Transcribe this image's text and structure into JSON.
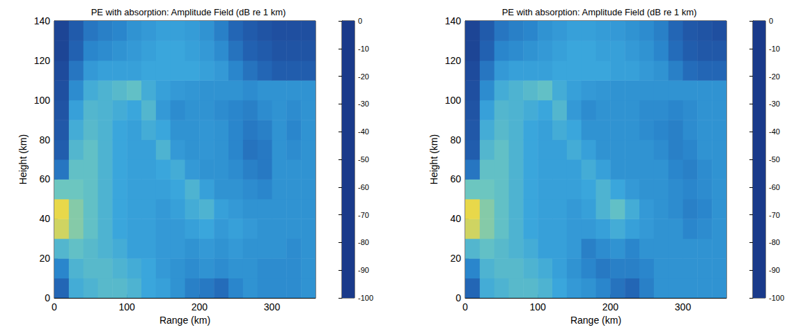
{
  "chart_data": [
    {
      "type": "heatmap",
      "title": "PE with absorption: Amplitude Field (dB re 1 km)",
      "x_label": "Range (km)",
      "y_label": "Height (km)",
      "xlim": [
        0,
        360
      ],
      "xticks": [
        0,
        100,
        200,
        300
      ],
      "ylim": [
        0,
        140
      ],
      "yticks": [
        0,
        20,
        40,
        60,
        80,
        100,
        120,
        140
      ],
      "x_bins": [
        0,
        20,
        40,
        60,
        80,
        100,
        120,
        140,
        160,
        180,
        200,
        220,
        240,
        260,
        280,
        300,
        320,
        340,
        360
      ],
      "y_bins": [
        0,
        10,
        20,
        30,
        40,
        50,
        60,
        70,
        80,
        90,
        100,
        110,
        120,
        130,
        140
      ],
      "values": [
        [
          -80,
          -58,
          -56,
          -54,
          -54,
          -56,
          -60,
          -62,
          -66,
          -72,
          -74,
          -78,
          -70,
          -66,
          -68,
          -68,
          -68,
          -66
        ],
        [
          -70,
          -56,
          -54,
          -54,
          -56,
          -58,
          -60,
          -64,
          -66,
          -68,
          -66,
          -68,
          -66,
          -66,
          -68,
          -68,
          -68,
          -66
        ],
        [
          -55,
          -52,
          -54,
          -56,
          -58,
          -62,
          -62,
          -64,
          -64,
          -66,
          -64,
          -66,
          -64,
          -66,
          -66,
          -66,
          -68,
          -66
        ],
        [
          -42,
          -48,
          -52,
          -56,
          -60,
          -62,
          -62,
          -64,
          -64,
          -62,
          -60,
          -64,
          -62,
          -64,
          -66,
          -66,
          -66,
          -66
        ],
        [
          -40,
          -48,
          -52,
          -56,
          -60,
          -62,
          -62,
          -64,
          -62,
          -58,
          -56,
          -62,
          -64,
          -66,
          -66,
          -66,
          -66,
          -66
        ],
        [
          -50,
          -50,
          -52,
          -56,
          -60,
          -62,
          -62,
          -62,
          -60,
          -56,
          -62,
          -66,
          -66,
          -68,
          -70,
          -66,
          -66,
          -66
        ],
        [
          -75,
          -52,
          -52,
          -56,
          -60,
          -62,
          -62,
          -60,
          -58,
          -64,
          -66,
          -66,
          -68,
          -72,
          -74,
          -66,
          -66,
          -66
        ],
        [
          -84,
          -55,
          -52,
          -56,
          -60,
          -62,
          -62,
          -56,
          -64,
          -66,
          -65,
          -66,
          -70,
          -76,
          -74,
          -66,
          -68,
          -66
        ],
        [
          -86,
          -58,
          -54,
          -56,
          -60,
          -62,
          -58,
          -60,
          -66,
          -66,
          -65,
          -66,
          -70,
          -74,
          -72,
          -66,
          -70,
          -66
        ],
        [
          -88,
          -62,
          -55,
          -56,
          -58,
          -60,
          -55,
          -64,
          -68,
          -66,
          -66,
          -68,
          -70,
          -72,
          -68,
          -66,
          -68,
          -66
        ],
        [
          -90,
          -68,
          -58,
          -56,
          -54,
          -52,
          -58,
          -62,
          -64,
          -65,
          -66,
          -66,
          -66,
          -68,
          -66,
          -66,
          -66,
          -66
        ],
        [
          -92,
          -75,
          -64,
          -62,
          -62,
          -62,
          -60,
          -60,
          -60,
          -60,
          -62,
          -64,
          -70,
          -76,
          -80,
          -84,
          -84,
          -84
        ],
        [
          -95,
          -82,
          -70,
          -68,
          -66,
          -64,
          -62,
          -60,
          -60,
          -62,
          -64,
          -68,
          -76,
          -82,
          -85,
          -88,
          -88,
          -88
        ],
        [
          -95,
          -85,
          -75,
          -72,
          -70,
          -66,
          -64,
          -62,
          -62,
          -63,
          -66,
          -72,
          -80,
          -85,
          -88,
          -90,
          -90,
          -90
        ]
      ],
      "colorbar": {
        "range": [
          -100,
          0
        ],
        "ticks": [
          -100,
          -90,
          -80,
          -70,
          -60,
          -50,
          -40,
          -30,
          -20,
          -10,
          0
        ]
      }
    },
    {
      "type": "heatmap",
      "title": "PE with absorption: Amplitude Field (dB re 1 km)",
      "x_label": "Range (km)",
      "y_label": "Height (km)",
      "xlim": [
        0,
        360
      ],
      "xticks": [
        0,
        100,
        200,
        300
      ],
      "ylim": [
        0,
        140
      ],
      "yticks": [
        0,
        20,
        40,
        60,
        80,
        100,
        120,
        140
      ],
      "x_bins": [
        0,
        20,
        40,
        60,
        80,
        100,
        120,
        140,
        160,
        180,
        200,
        220,
        240,
        260,
        280,
        300,
        320,
        340,
        360
      ],
      "y_bins": [
        0,
        10,
        20,
        30,
        40,
        50,
        60,
        70,
        80,
        90,
        100,
        110,
        120,
        130,
        140
      ],
      "values": [
        [
          -80,
          -58,
          -56,
          -54,
          -54,
          -56,
          -60,
          -64,
          -66,
          -70,
          -76,
          -80,
          -72,
          -66,
          -66,
          -66,
          -66,
          -66
        ],
        [
          -70,
          -56,
          -54,
          -54,
          -56,
          -58,
          -62,
          -66,
          -70,
          -74,
          -72,
          -72,
          -70,
          -66,
          -66,
          -66,
          -66,
          -66
        ],
        [
          -55,
          -52,
          -54,
          -56,
          -58,
          -62,
          -62,
          -64,
          -72,
          -68,
          -66,
          -70,
          -66,
          -66,
          -66,
          -66,
          -66,
          -66
        ],
        [
          -42,
          -48,
          -52,
          -56,
          -60,
          -62,
          -62,
          -64,
          -64,
          -62,
          -58,
          -62,
          -64,
          -66,
          -66,
          -70,
          -68,
          -66
        ],
        [
          -40,
          -48,
          -52,
          -56,
          -60,
          -62,
          -62,
          -64,
          -62,
          -56,
          -52,
          -58,
          -64,
          -66,
          -68,
          -72,
          -70,
          -66
        ],
        [
          -50,
          -50,
          -52,
          -56,
          -60,
          -62,
          -62,
          -62,
          -60,
          -56,
          -60,
          -64,
          -66,
          -66,
          -68,
          -70,
          -68,
          -66
        ],
        [
          -75,
          -52,
          -52,
          -56,
          -60,
          -62,
          -62,
          -62,
          -58,
          -62,
          -66,
          -66,
          -66,
          -66,
          -70,
          -72,
          -68,
          -66
        ],
        [
          -84,
          -55,
          -52,
          -56,
          -60,
          -62,
          -62,
          -58,
          -62,
          -66,
          -66,
          -66,
          -66,
          -68,
          -72,
          -70,
          -66,
          -66
        ],
        [
          -86,
          -58,
          -54,
          -56,
          -60,
          -62,
          -58,
          -60,
          -66,
          -66,
          -66,
          -66,
          -68,
          -70,
          -72,
          -68,
          -66,
          -66
        ],
        [
          -88,
          -62,
          -55,
          -56,
          -58,
          -60,
          -55,
          -64,
          -68,
          -66,
          -66,
          -66,
          -68,
          -68,
          -70,
          -68,
          -66,
          -66
        ],
        [
          -90,
          -68,
          -58,
          -56,
          -54,
          -52,
          -58,
          -62,
          -64,
          -65,
          -66,
          -66,
          -66,
          -66,
          -66,
          -66,
          -66,
          -66
        ],
        [
          -92,
          -75,
          -64,
          -62,
          -62,
          -62,
          -60,
          -60,
          -60,
          -60,
          -62,
          -62,
          -64,
          -66,
          -72,
          -78,
          -80,
          -80
        ],
        [
          -95,
          -82,
          -70,
          -68,
          -66,
          -64,
          -62,
          -60,
          -60,
          -62,
          -62,
          -64,
          -66,
          -70,
          -78,
          -84,
          -86,
          -86
        ],
        [
          -95,
          -85,
          -75,
          -72,
          -70,
          -66,
          -64,
          -62,
          -62,
          -63,
          -64,
          -66,
          -68,
          -72,
          -80,
          -86,
          -88,
          -90
        ]
      ],
      "colorbar": {
        "range": [
          -100,
          0
        ],
        "ticks": [
          -100,
          -90,
          -80,
          -70,
          -60,
          -50,
          -40,
          -30,
          -20,
          -10,
          0
        ]
      }
    }
  ]
}
